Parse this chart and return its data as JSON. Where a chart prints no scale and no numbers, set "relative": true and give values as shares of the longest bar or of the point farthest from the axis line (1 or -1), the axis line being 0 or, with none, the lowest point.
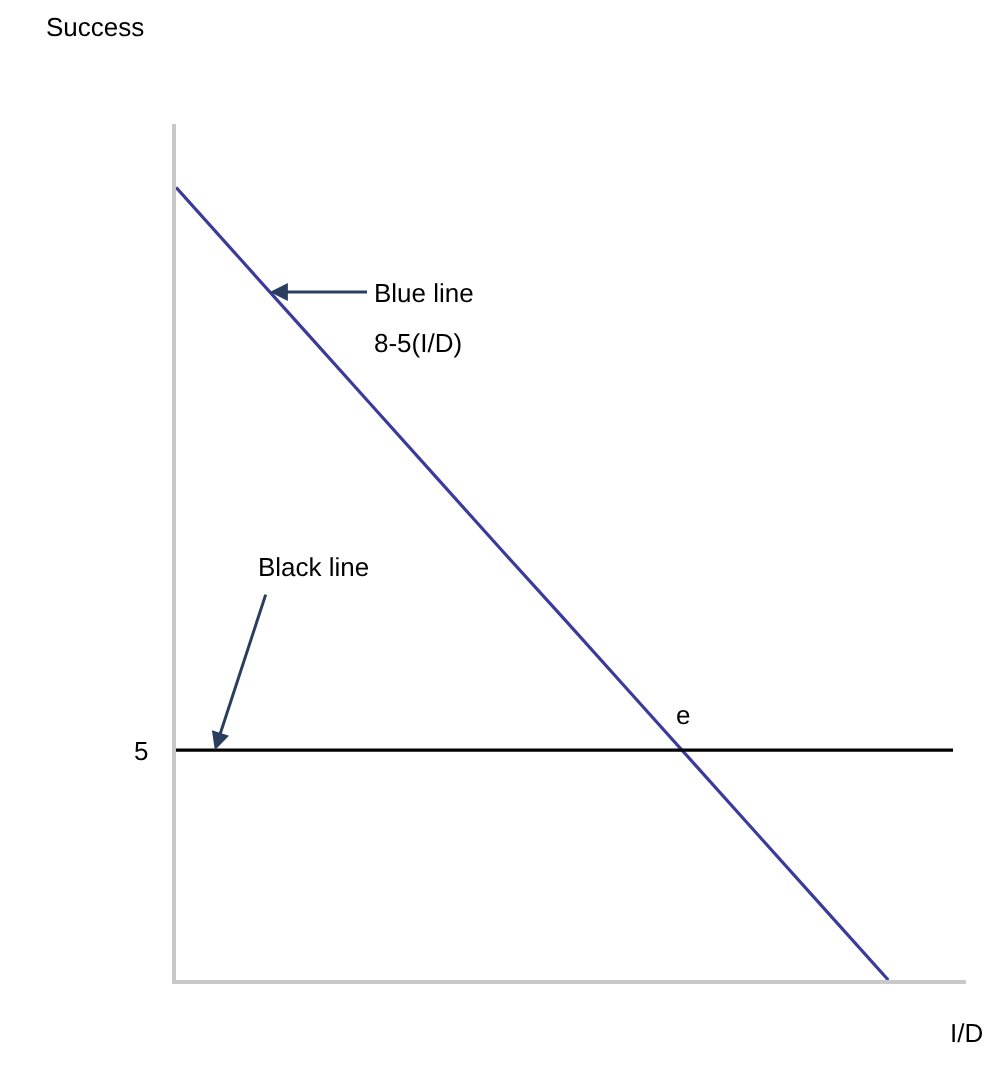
{
  "chart_data": {
    "type": "line",
    "relative": true,
    "xlabel": "I/D",
    "categories": [
      null,
      null,
      null,
      null,
      null,
      null,
      null,
      null,
      null,
      null,
      null,
      null,
      null
    ],
    "series": [
      {
        "name": "Blue line",
        "color": "#3b3b9c",
        "values": [
          1,
          0.909,
          0.818,
          0.727,
          0.636,
          0.545,
          0.455,
          0.364,
          0.273,
          0.182,
          0.091,
          0,
          null
        ]
      },
      {
        "name": "Black line",
        "color": "#000000",
        "values": [
          0.29,
          0.29,
          0.29,
          0.29,
          0.29,
          0.29,
          0.29,
          0.29,
          0.29,
          0.29,
          0.29,
          0.29,
          0.29
        ]
      }
    ],
    "annotations": [
      "8-5(I/D)",
      "5",
      "e",
      "Success"
    ],
    "legend": false,
    "marker": "none",
    "line_style": "solid"
  }
}
